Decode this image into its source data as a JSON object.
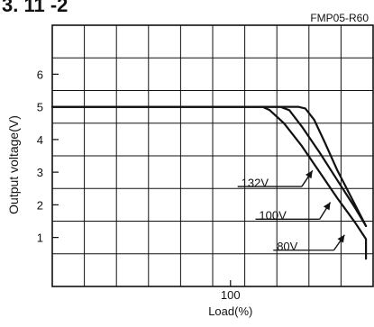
{
  "header": {
    "fragment": "3.  11 -2"
  },
  "chart_data": {
    "type": "line",
    "model": "FMP05-R60",
    "xlabel": "Load(%)",
    "ylabel": "Output voltage(V)",
    "xlim": [
      0,
      180
    ],
    "ylim": [
      -0.5,
      7.5
    ],
    "x_ticks": [
      100
    ],
    "y_ticks": [
      1,
      2,
      3,
      4,
      5,
      6
    ],
    "grid": true,
    "series": [
      {
        "name": "132V",
        "values": [
          [
            0,
            5
          ],
          [
            118,
            5
          ],
          [
            122,
            4.9
          ],
          [
            130,
            4.5
          ],
          [
            140,
            3.8
          ],
          [
            150,
            3.0
          ],
          [
            160,
            2.2
          ],
          [
            170,
            1.45
          ],
          [
            176,
            0.95
          ],
          [
            176,
            0.35
          ]
        ]
      },
      {
        "name": "100V",
        "values": [
          [
            0,
            5
          ],
          [
            128,
            5
          ],
          [
            133,
            4.9
          ],
          [
            140,
            4.4
          ],
          [
            150,
            3.6
          ],
          [
            160,
            2.75
          ],
          [
            170,
            1.9
          ],
          [
            176,
            1.35
          ]
        ]
      },
      {
        "name": "80V",
        "values": [
          [
            0,
            5
          ],
          [
            138,
            5
          ],
          [
            142,
            4.95
          ],
          [
            147,
            4.6
          ],
          [
            153,
            3.9
          ],
          [
            160,
            3.05
          ],
          [
            168,
            2.2
          ],
          [
            176,
            1.35
          ]
        ]
      }
    ]
  }
}
